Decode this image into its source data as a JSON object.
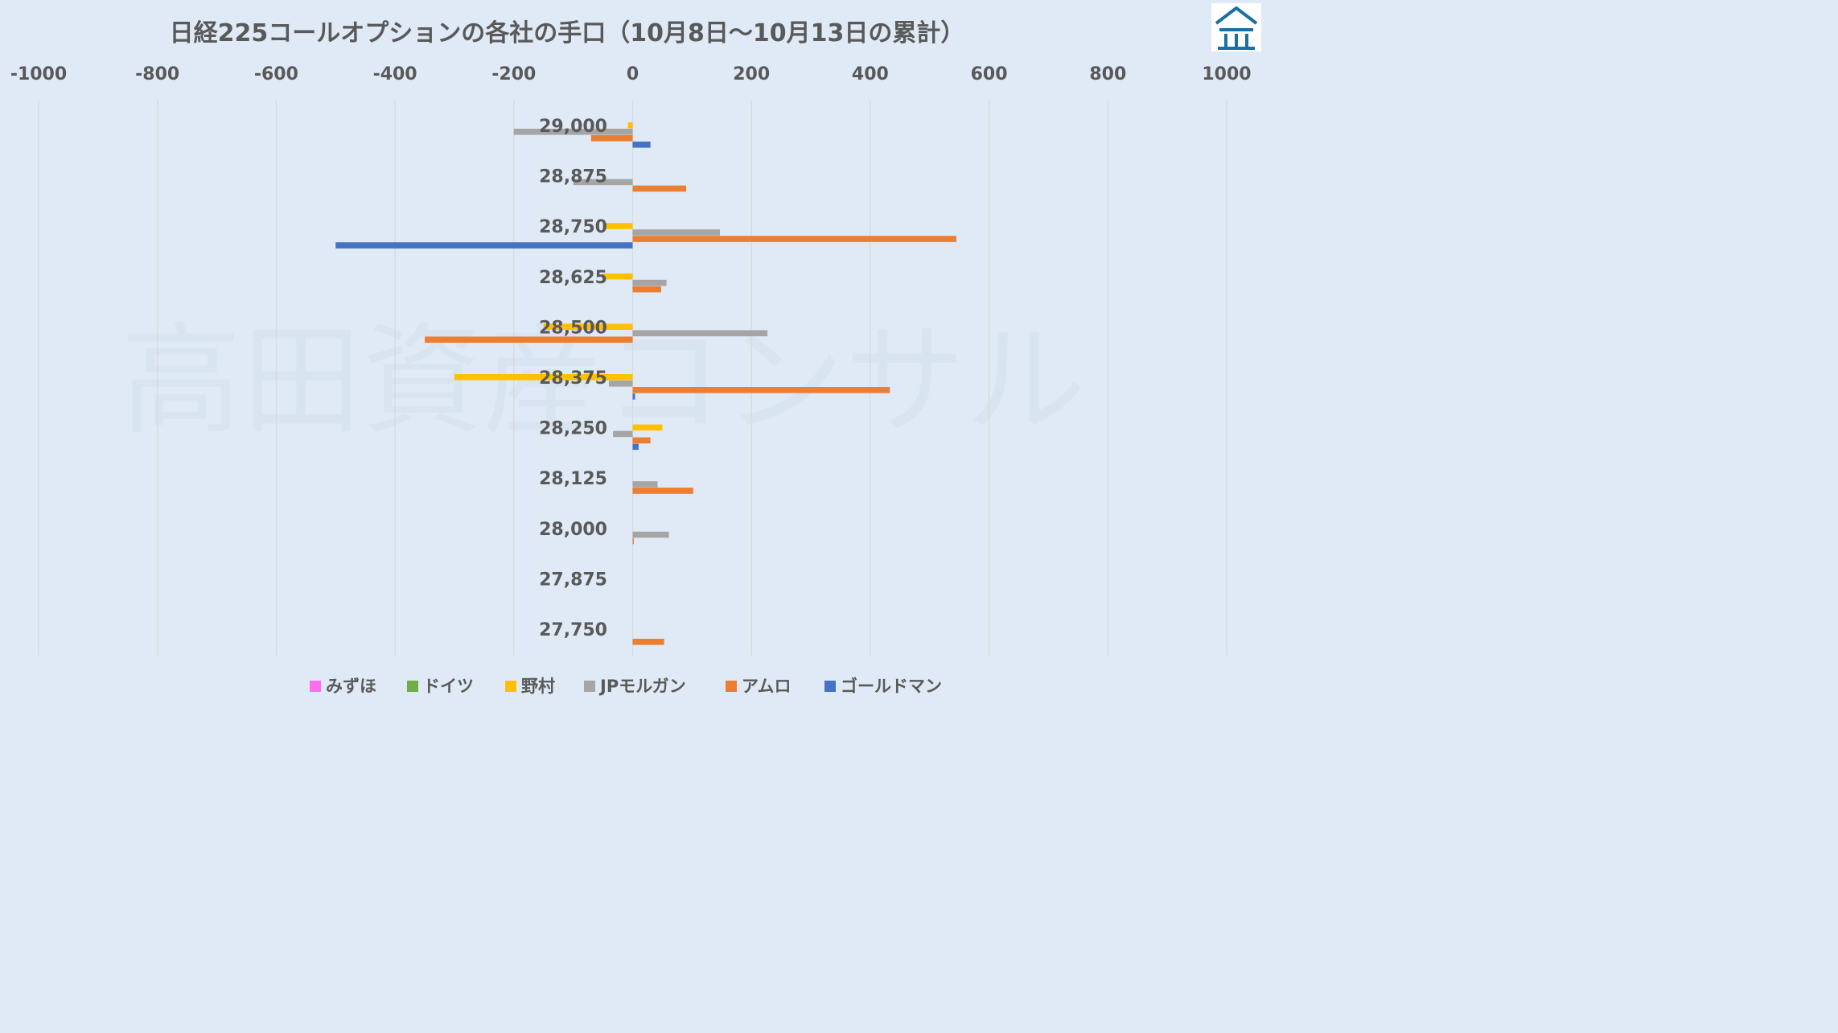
{
  "chart_data": {
    "type": "bar",
    "orientation": "horizontal",
    "title": "日経225コールオプションの各社の手口（10月8日〜10月13日の累計）",
    "xlim": [
      -1000,
      1000
    ],
    "xticks": [
      "-1000",
      "-800",
      "-600",
      "-400",
      "-200",
      "0",
      "200",
      "400",
      "600",
      "800",
      "1000"
    ],
    "x_axis_position": "top",
    "grid": true,
    "legend_position": "bottom",
    "categories": [
      "29,000",
      "28,875",
      "28,750",
      "28,625",
      "28,500",
      "28,375",
      "28,250",
      "28,125",
      "28,000",
      "27,875",
      "27,750"
    ],
    "series": [
      {
        "name": "みずほ",
        "color": "#ff6ef0",
        "values": [
          0,
          0,
          0,
          0,
          0,
          0,
          0,
          0,
          0,
          0,
          0
        ]
      },
      {
        "name": "ドイツ",
        "color": "#70ad47",
        "values": [
          0,
          0,
          0,
          0,
          0,
          0,
          0,
          0,
          0,
          0,
          0
        ]
      },
      {
        "name": "野村",
        "color": "#ffc000",
        "values": [
          -8,
          0,
          -45,
          -50,
          -150,
          -300,
          50,
          0,
          0,
          0,
          0
        ]
      },
      {
        "name": "JPモルガン",
        "color": "#a5a5a5",
        "values": [
          -200,
          -100,
          147,
          57,
          227,
          -40,
          -33,
          42,
          61,
          0,
          0
        ]
      },
      {
        "name": "アムロ",
        "color": "#ed7d31",
        "values": [
          -70,
          90,
          545,
          48,
          -350,
          433,
          30,
          102,
          2,
          0,
          53
        ]
      },
      {
        "name": "ゴールドマン",
        "color": "#4472c4",
        "values": [
          30,
          0,
          -500,
          0,
          0,
          4,
          10,
          0,
          0,
          0,
          0
        ]
      }
    ]
  },
  "watermark": "高田資産コンサル",
  "logo": {
    "icon": "building-logo-icon",
    "color": "#1a6fa3"
  }
}
